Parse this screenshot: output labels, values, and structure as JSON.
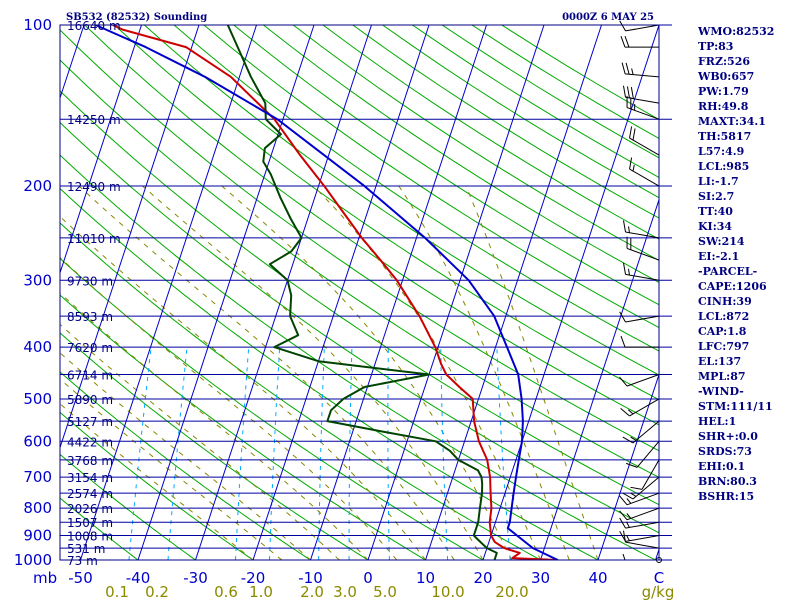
{
  "header": {
    "station": "SB532 (82532) Sounding",
    "time": "0000Z  6 MAY 25"
  },
  "indices": [
    "WMO:82532",
    "TP:83",
    "FRZ:526",
    "WB0:657",
    "PW:1.79",
    "RH:49.8",
    "MAXT:34.1",
    "TH:5817",
    "L57:4.9",
    "LCL:985",
    "LI:-1.7",
    "SI:2.7",
    "TT:40",
    "KI:34",
    "SW:214",
    "EI:-2.1",
    "-PARCEL-",
    "CAPE:1206",
    "CINH:39",
    "LCL:872",
    "CAP:1.8",
    "LFC:797",
    "EL:137",
    "MPL:87",
    "-WIND-",
    "STM:111/11",
    "HEL:1",
    "SHR+:0.0",
    "SRDS:73",
    "EHI:0.1",
    "BRN:80.3",
    "BSHR:15"
  ],
  "colors": {
    "isobar": "#0000a0",
    "isotherm": "#0000cc",
    "dry_adiabat": "#00aa00",
    "moist_adiabat": "#888800",
    "mixing_ratio": "#00aaff",
    "temperature": "#cc0000",
    "dewpoint": "#004400",
    "parcel": "#0000cc",
    "wind": "#000000"
  },
  "chart_data": {
    "type": "line",
    "title": "SB532 (82532) Sounding",
    "subtitle": "0000Z  6 MAY 25",
    "xlabel": "",
    "ylabel": "mb",
    "y_scale": "log",
    "ylim": [
      1000,
      100
    ],
    "pressure_ticks": [
      100,
      200,
      300,
      400,
      500,
      600,
      700,
      800,
      900,
      1000
    ],
    "pressure_unit": "mb",
    "temperature_ticks": [
      -50,
      -40,
      -30,
      -20,
      -10,
      0,
      10,
      20,
      30,
      40
    ],
    "mixing_ratio_labels": [
      "0.1",
      "0.2",
      "0.6",
      "1.0",
      "2.0",
      "3.0",
      "5.0",
      "10.0",
      "20.0",
      "g/kg"
    ],
    "corner_label": "C",
    "height_labels": [
      {
        "p": 100,
        "label": "16640 m"
      },
      {
        "p": 150,
        "label": "14250 m"
      },
      {
        "p": 200,
        "label": "12490 m"
      },
      {
        "p": 250,
        "label": "11010 m"
      },
      {
        "p": 300,
        "label": "9730 m"
      },
      {
        "p": 350,
        "label": "8593 m"
      },
      {
        "p": 400,
        "label": "7620 m"
      },
      {
        "p": 450,
        "label": "6714 m"
      },
      {
        "p": 500,
        "label": "5890 m"
      },
      {
        "p": 550,
        "label": "5127 m"
      },
      {
        "p": 600,
        "label": "4422 m"
      },
      {
        "p": 650,
        "label": "3768 m"
      },
      {
        "p": 700,
        "label": "3154 m"
      },
      {
        "p": 750,
        "label": "2574 m"
      },
      {
        "p": 800,
        "label": "2026 m"
      },
      {
        "p": 850,
        "label": "1507 m"
      },
      {
        "p": 900,
        "label": "1008 m"
      },
      {
        "p": 950,
        "label": "531 m"
      },
      {
        "p": 1000,
        "label": "73 m"
      }
    ],
    "series": [
      {
        "key": "temperature",
        "points": [
          [
            1000,
            33.0
          ],
          [
            992,
            25.0
          ],
          [
            970,
            26.0
          ],
          [
            950,
            23.0
          ],
          [
            925,
            21.0
          ],
          [
            900,
            20.0
          ],
          [
            850,
            19.0
          ],
          [
            800,
            18.5
          ],
          [
            750,
            17.5
          ],
          [
            700,
            16.5
          ],
          [
            650,
            15.0
          ],
          [
            600,
            12.5
          ],
          [
            550,
            10.5
          ],
          [
            500,
            9.0
          ],
          [
            475,
            6.0
          ],
          [
            450,
            3.0
          ],
          [
            430,
            1.5
          ],
          [
            400,
            -0.5
          ],
          [
            350,
            -5.0
          ],
          [
            300,
            -11.0
          ],
          [
            275,
            -15.0
          ],
          [
            250,
            -19.5
          ],
          [
            225,
            -24.0
          ],
          [
            200,
            -29.0
          ],
          [
            175,
            -35.0
          ],
          [
            150,
            -41.5
          ],
          [
            125,
            -51.5
          ],
          [
            110,
            -61.0
          ],
          [
            102,
            -73.0
          ],
          [
            100,
            -75.0
          ]
        ]
      },
      {
        "key": "dewpoint",
        "points": [
          [
            1000,
            22.0
          ],
          [
            970,
            22.0
          ],
          [
            950,
            20.0
          ],
          [
            925,
            18.5
          ],
          [
            900,
            17.0
          ],
          [
            850,
            17.0
          ],
          [
            800,
            16.5
          ],
          [
            750,
            16.0
          ],
          [
            720,
            15.5
          ],
          [
            700,
            15.0
          ],
          [
            680,
            14.0
          ],
          [
            650,
            10.0
          ],
          [
            625,
            8.0
          ],
          [
            600,
            5.0
          ],
          [
            575,
            -5.0
          ],
          [
            550,
            -15.0
          ],
          [
            525,
            -15.0
          ],
          [
            500,
            -13.5
          ],
          [
            475,
            -10.5
          ],
          [
            450,
            0.0
          ],
          [
            425,
            -20.0
          ],
          [
            400,
            -28.5
          ],
          [
            380,
            -25.0
          ],
          [
            350,
            -27.5
          ],
          [
            320,
            -28.5
          ],
          [
            300,
            -30.0
          ],
          [
            280,
            -34.0
          ],
          [
            265,
            -31.0
          ],
          [
            250,
            -30.0
          ],
          [
            230,
            -33.0
          ],
          [
            210,
            -36.0
          ],
          [
            190,
            -39.0
          ],
          [
            180,
            -41.0
          ],
          [
            170,
            -41.5
          ],
          [
            160,
            -39.5
          ],
          [
            150,
            -43.0
          ],
          [
            140,
            -44.0
          ],
          [
            125,
            -48.0
          ],
          [
            110,
            -52.0
          ],
          [
            100,
            -55.0
          ]
        ]
      },
      {
        "key": "parcel",
        "points": [
          [
            1000,
            33.0
          ],
          [
            950,
            28.0
          ],
          [
            872,
            22.5
          ],
          [
            850,
            22.5
          ],
          [
            800,
            22.0
          ],
          [
            750,
            21.5
          ],
          [
            700,
            21.0
          ],
          [
            650,
            20.5
          ],
          [
            600,
            20.0
          ],
          [
            550,
            19.0
          ],
          [
            500,
            17.5
          ],
          [
            450,
            15.5
          ],
          [
            400,
            12.0
          ],
          [
            350,
            8.0
          ],
          [
            300,
            1.5
          ],
          [
            250,
            -8.5
          ],
          [
            200,
            -22.0
          ],
          [
            150,
            -41.0
          ],
          [
            125,
            -56.0
          ],
          [
            110,
            -68.0
          ],
          [
            100,
            -78.0
          ]
        ]
      }
    ],
    "wind_barbs": [
      {
        "p": 100,
        "dir": 260,
        "spd": 10
      },
      {
        "p": 110,
        "dir": 270,
        "spd": 20
      },
      {
        "p": 125,
        "dir": 275,
        "spd": 25
      },
      {
        "p": 140,
        "dir": 280,
        "spd": 30
      },
      {
        "p": 150,
        "dir": 290,
        "spd": 25
      },
      {
        "p": 175,
        "dir": 300,
        "spd": 20
      },
      {
        "p": 200,
        "dir": 300,
        "spd": 15
      },
      {
        "p": 250,
        "dir": 280,
        "spd": 15
      },
      {
        "p": 275,
        "dir": 290,
        "spd": 20
      },
      {
        "p": 300,
        "dir": 280,
        "spd": 15
      },
      {
        "p": 350,
        "dir": 260,
        "spd": 10
      },
      {
        "p": 400,
        "dir": 270,
        "spd": 10
      },
      {
        "p": 450,
        "dir": 250,
        "spd": 10
      },
      {
        "p": 500,
        "dir": 240,
        "spd": 15
      },
      {
        "p": 550,
        "dir": 230,
        "spd": 15
      },
      {
        "p": 600,
        "dir": 220,
        "spd": 10
      },
      {
        "p": 650,
        "dir": 210,
        "spd": 10
      },
      {
        "p": 700,
        "dir": 230,
        "spd": 15
      },
      {
        "p": 750,
        "dir": 250,
        "spd": 15
      },
      {
        "p": 800,
        "dir": 250,
        "spd": 15
      },
      {
        "p": 850,
        "dir": 260,
        "spd": 15
      },
      {
        "p": 900,
        "dir": 260,
        "spd": 15
      },
      {
        "p": 950,
        "dir": 280,
        "spd": 10
      },
      {
        "p": 1000,
        "dir": 270,
        "spd": 5
      }
    ]
  }
}
